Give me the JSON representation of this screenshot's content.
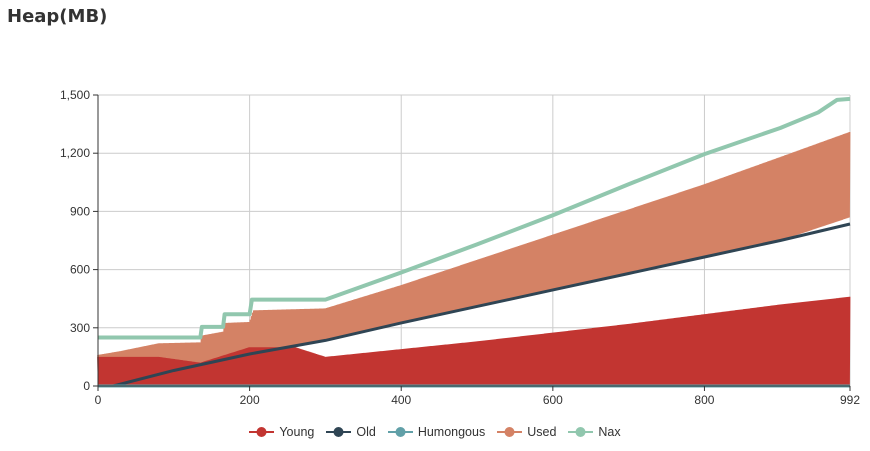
{
  "title": "Heap(MB)",
  "chart_data": {
    "type": "area",
    "title": "Heap(MB)",
    "xlabel": "",
    "ylabel": "",
    "xlim": [
      0,
      992
    ],
    "ylim": [
      0,
      1500
    ],
    "x_ticks": [
      0,
      200,
      400,
      600,
      800,
      992
    ],
    "x_tick_labels": [
      "0",
      "200",
      "400",
      "600",
      "800",
      "992"
    ],
    "y_ticks": [
      0,
      300,
      600,
      900,
      1200,
      1500
    ],
    "y_tick_labels": [
      "0",
      "300",
      "600",
      "900",
      "1,200",
      "1,500"
    ],
    "grid": true,
    "legend_position": "bottom-center",
    "series": [
      {
        "name": "Young",
        "color": "#c23531",
        "style": "oscillating band",
        "x": [
          0,
          30,
          80,
          135,
          200,
          260,
          300,
          400,
          500,
          600,
          700,
          800,
          900,
          992
        ],
        "low": [
          0,
          0,
          0,
          0,
          0,
          0,
          0,
          0,
          0,
          0,
          0,
          0,
          0,
          0
        ],
        "high": [
          150,
          150,
          150,
          120,
          200,
          200,
          150,
          190,
          230,
          275,
          320,
          370,
          420,
          460
        ]
      },
      {
        "name": "Old",
        "color": "#2f4554",
        "x": [
          0,
          20,
          100,
          200,
          300,
          400,
          500,
          600,
          700,
          800,
          900,
          992
        ],
        "values": [
          0,
          0,
          80,
          165,
          235,
          325,
          410,
          495,
          580,
          665,
          750,
          835
        ]
      },
      {
        "name": "Humongous",
        "color": "#61a0a8",
        "x": [
          0,
          992
        ],
        "values": [
          0,
          0
        ]
      },
      {
        "name": "Used",
        "color": "#d48265",
        "style": "oscillating band",
        "x": [
          0,
          30,
          80,
          135,
          137,
          165,
          167,
          200,
          205,
          300,
          400,
          500,
          600,
          700,
          800,
          900,
          992
        ],
        "low": [
          0,
          20,
          40,
          70,
          70,
          100,
          100,
          150,
          150,
          235,
          325,
          410,
          495,
          580,
          665,
          750,
          870
        ],
        "high": [
          160,
          180,
          220,
          225,
          260,
          280,
          325,
          330,
          390,
          400,
          520,
          650,
          780,
          910,
          1040,
          1180,
          1310
        ]
      },
      {
        "name": "Nax",
        "color": "#91c7ae",
        "x": [
          0,
          135,
          137,
          165,
          167,
          200,
          203,
          300,
          400,
          500,
          600,
          700,
          800,
          900,
          950,
          975,
          992
        ],
        "values": [
          250,
          250,
          305,
          305,
          370,
          370,
          445,
          445,
          585,
          730,
          880,
          1040,
          1195,
          1330,
          1410,
          1475,
          1480
        ]
      }
    ]
  }
}
